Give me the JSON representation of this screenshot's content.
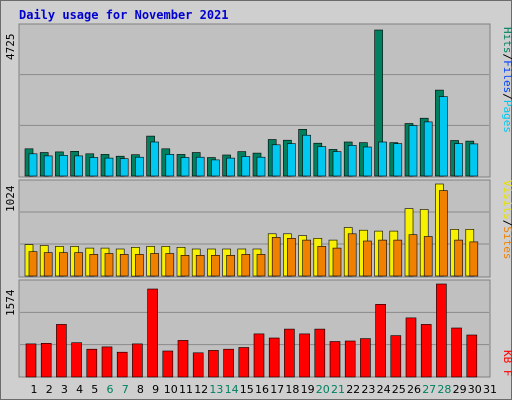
{
  "title": "Daily usage for November 2021",
  "colors": {
    "hits": "#00805f",
    "files": "#0040ff",
    "pages": "#00c8f0",
    "visits": "#f7f000",
    "sites": "#f08000",
    "kbytes": "#ff0000",
    "weekend_day": "#00805f",
    "weekday": "#000000",
    "panel_bg": "#c0c0c0",
    "frame_bg": "#cfcfcf"
  },
  "chart_data": [
    {
      "type": "bar",
      "title": "Daily usage for November 2021",
      "ymax_label": "4725",
      "ylim": [
        0,
        4725
      ],
      "grid": true,
      "legend": [
        "Pages",
        "Files",
        "Hits"
      ],
      "categories": [
        "1",
        "2",
        "3",
        "4",
        "5",
        "6",
        "7",
        "8",
        "9",
        "10",
        "11",
        "12",
        "13",
        "14",
        "15",
        "16",
        "17",
        "18",
        "19",
        "20",
        "21",
        "22",
        "23",
        "24",
        "25",
        "26",
        "27",
        "28",
        "29",
        "30",
        "31"
      ],
      "series": [
        {
          "name": "Hits",
          "values": [
            880,
            760,
            780,
            800,
            720,
            700,
            640,
            690,
            1290,
            880,
            700,
            760,
            600,
            680,
            790,
            740,
            1180,
            1160,
            1510,
            1060,
            860,
            1100,
            1080,
            4725,
            1080,
            1700,
            1870,
            2780,
            1150,
            1130,
            0
          ]
        },
        {
          "name": "Pages",
          "values": [
            720,
            650,
            670,
            650,
            600,
            580,
            560,
            610,
            1100,
            700,
            600,
            610,
            520,
            580,
            630,
            610,
            1010,
            1050,
            1320,
            950,
            790,
            990,
            940,
            1100,
            1050,
            1630,
            1750,
            2570,
            1050,
            1040,
            0
          ]
        }
      ]
    },
    {
      "type": "bar",
      "ymax_label": "1024",
      "ylim": [
        0,
        1024
      ],
      "grid": true,
      "legend": [
        "Sites",
        "Visits"
      ],
      "categories": [
        "1",
        "2",
        "3",
        "4",
        "5",
        "6",
        "7",
        "8",
        "9",
        "10",
        "11",
        "12",
        "13",
        "14",
        "15",
        "16",
        "17",
        "18",
        "19",
        "20",
        "21",
        "22",
        "23",
        "24",
        "25",
        "26",
        "27",
        "28",
        "29",
        "30",
        "31"
      ],
      "series": [
        {
          "name": "Visits",
          "values": [
            350,
            340,
            330,
            330,
            310,
            310,
            300,
            320,
            330,
            330,
            320,
            300,
            300,
            300,
            300,
            300,
            470,
            470,
            450,
            420,
            400,
            540,
            510,
            500,
            500,
            750,
            740,
            1024,
            520,
            520,
            0
          ]
        },
        {
          "name": "Sites",
          "values": [
            270,
            260,
            260,
            260,
            240,
            250,
            240,
            240,
            250,
            250,
            230,
            230,
            230,
            230,
            240,
            240,
            430,
            420,
            400,
            330,
            310,
            470,
            390,
            400,
            400,
            460,
            440,
            950,
            400,
            380,
            0
          ]
        }
      ]
    },
    {
      "type": "bar",
      "ymax_label": "1574",
      "ylim": [
        0,
        1574
      ],
      "grid": true,
      "legend": [
        "KBytes"
      ],
      "legend_label": "KB F",
      "categories": [
        "1",
        "2",
        "3",
        "4",
        "5",
        "6",
        "7",
        "8",
        "9",
        "10",
        "11",
        "12",
        "13",
        "14",
        "15",
        "16",
        "17",
        "18",
        "19",
        "20",
        "21",
        "22",
        "23",
        "24",
        "25",
        "26",
        "27",
        "28",
        "29",
        "30",
        "31"
      ],
      "series": [
        {
          "name": "KBytes",
          "values": [
            560,
            570,
            890,
            580,
            470,
            510,
            420,
            560,
            1490,
            440,
            620,
            410,
            450,
            470,
            500,
            730,
            660,
            810,
            730,
            810,
            600,
            610,
            650,
            1230,
            700,
            1000,
            890,
            1574,
            830,
            710,
            0
          ]
        }
      ]
    }
  ],
  "weekend_days": [
    6,
    7,
    13,
    14,
    20,
    21,
    27,
    28
  ]
}
